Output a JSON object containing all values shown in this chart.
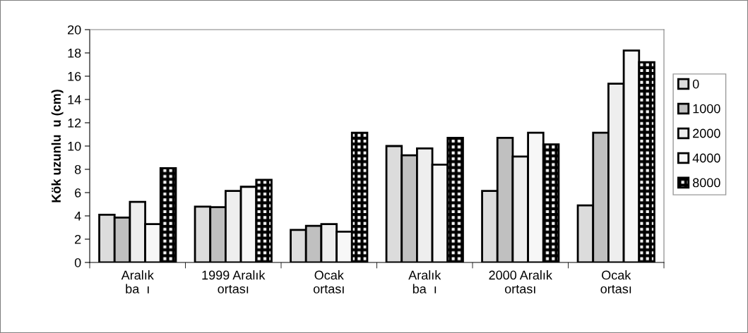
{
  "chart_data": {
    "type": "bar",
    "ylabel": "Kök uzunlu  u (cm)",
    "categories": [
      "Aralık\nba  ı",
      "1999 Aralık\nortası",
      "Ocak\nortası",
      "Aralık\nba  ı",
      "2000 Aralık\nortası",
      "Ocak\nortası"
    ],
    "series": [
      {
        "name": "0",
        "color": "#dcdcdc",
        "values": [
          4.1,
          4.8,
          2.8,
          10.0,
          6.15,
          4.9
        ]
      },
      {
        "name": "1000",
        "color": "#c0c0c0",
        "values": [
          3.85,
          4.75,
          3.15,
          9.2,
          10.7,
          11.15
        ]
      },
      {
        "name": "2000",
        "color": "#eeeeee",
        "values": [
          5.2,
          6.15,
          3.3,
          9.8,
          9.1,
          15.35
        ]
      },
      {
        "name": "4000",
        "color": "#f7f7f7",
        "values": [
          3.3,
          6.5,
          2.65,
          8.4,
          11.15,
          18.2
        ]
      },
      {
        "name": "8000",
        "color": "#000000",
        "values": [
          8.1,
          7.1,
          11.15,
          10.7,
          10.15,
          17.2
        ]
      }
    ],
    "ylim": [
      0,
      20
    ],
    "yticks": [
      0,
      2,
      4,
      6,
      8,
      10,
      12,
      14,
      16,
      18,
      20
    ],
    "grid": false,
    "legend": "right"
  }
}
